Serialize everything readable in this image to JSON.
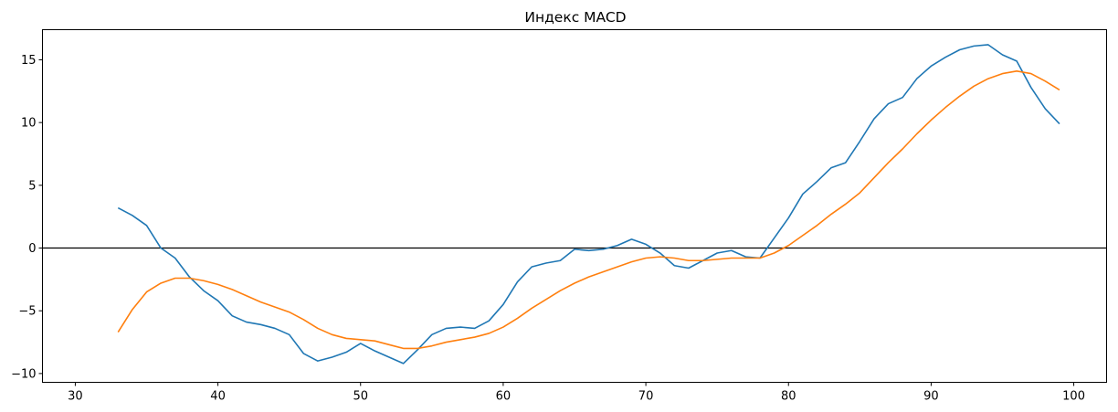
{
  "chart_data": {
    "type": "line",
    "title": "Индекс MACD",
    "xlabel": "",
    "ylabel": "",
    "xlim": [
      27.7,
      102.3
    ],
    "ylim": [
      -10.7,
      17.4
    ],
    "xticks": [
      30,
      40,
      50,
      60,
      70,
      80,
      90,
      100
    ],
    "yticks": [
      -10,
      -5,
      0,
      5,
      10,
      15
    ],
    "grid": false,
    "legend": "none",
    "hline": 0,
    "colors": {
      "macd": "#1f77b4",
      "signal": "#ff7f0e",
      "zero": "#000000"
    },
    "x": [
      33,
      34,
      35,
      36,
      37,
      38,
      39,
      40,
      41,
      42,
      43,
      44,
      45,
      46,
      47,
      48,
      49,
      50,
      51,
      52,
      53,
      54,
      55,
      56,
      57,
      58,
      59,
      60,
      61,
      62,
      63,
      64,
      65,
      66,
      67,
      68,
      69,
      70,
      71,
      72,
      73,
      74,
      75,
      76,
      77,
      78,
      79,
      80,
      81,
      82,
      83,
      84,
      85,
      86,
      87,
      88,
      89,
      90,
      91,
      92,
      93,
      94,
      95,
      96,
      97,
      98,
      99
    ],
    "series": [
      {
        "key": "macd",
        "values": [
          3.2,
          2.6,
          1.8,
          0.0,
          -0.8,
          -2.3,
          -3.4,
          -4.2,
          -5.4,
          -5.9,
          -6.1,
          -6.4,
          -6.9,
          -8.4,
          -9.0,
          -8.7,
          -8.3,
          -7.6,
          -8.2,
          -8.7,
          -9.2,
          -8.1,
          -6.9,
          -6.4,
          -6.3,
          -6.4,
          -5.8,
          -4.5,
          -2.7,
          -1.5,
          -1.2,
          -1.0,
          -0.1,
          -0.2,
          -0.1,
          0.2,
          0.7,
          0.3,
          -0.4,
          -1.4,
          -1.6,
          -1.0,
          -0.4,
          -0.2,
          -0.7,
          -0.8,
          0.8,
          2.4,
          4.3,
          5.3,
          6.4,
          6.8,
          8.5,
          10.3,
          11.5,
          12.0,
          13.5,
          14.5,
          15.2,
          15.8,
          16.1,
          16.2,
          15.4,
          14.9,
          12.8,
          11.1,
          9.9
        ]
      },
      {
        "key": "signal",
        "values": [
          -6.7,
          -4.9,
          -3.5,
          -2.8,
          -2.4,
          -2.4,
          -2.6,
          -2.9,
          -3.3,
          -3.8,
          -4.3,
          -4.7,
          -5.1,
          -5.7,
          -6.4,
          -6.9,
          -7.2,
          -7.3,
          -7.4,
          -7.7,
          -8.0,
          -8.0,
          -7.8,
          -7.5,
          -7.3,
          -7.1,
          -6.8,
          -6.3,
          -5.6,
          -4.8,
          -4.1,
          -3.4,
          -2.8,
          -2.3,
          -1.9,
          -1.5,
          -1.1,
          -0.8,
          -0.7,
          -0.8,
          -1.0,
          -1.0,
          -0.9,
          -0.8,
          -0.8,
          -0.8,
          -0.4,
          0.2,
          1.0,
          1.8,
          2.7,
          3.5,
          4.4,
          5.6,
          6.8,
          7.9,
          9.1,
          10.2,
          11.2,
          12.1,
          12.9,
          13.5,
          13.9,
          14.1,
          13.9,
          13.3,
          12.6
        ]
      }
    ]
  }
}
